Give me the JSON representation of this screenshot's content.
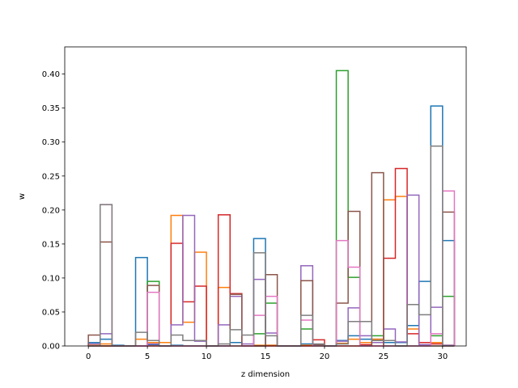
{
  "chart_data": {
    "type": "line",
    "style": "step-histogram",
    "xlabel": "z dimension",
    "ylabel": "w",
    "xlim": [
      -2,
      32
    ],
    "ylim": [
      0,
      0.44
    ],
    "xticks": [
      0,
      5,
      10,
      15,
      20,
      25,
      30
    ],
    "xtick_labels": [
      "0",
      "5",
      "10",
      "15",
      "20",
      "25",
      "30"
    ],
    "yticks": [
      0.0,
      0.05,
      0.1,
      0.15,
      0.2,
      0.25,
      0.3,
      0.35,
      0.4
    ],
    "ytick_labels": [
      "0.00",
      "0.05",
      "0.10",
      "0.15",
      "0.20",
      "0.25",
      "0.30",
      "0.35",
      "0.40"
    ],
    "grid": false,
    "bins": [
      0,
      1,
      2,
      3,
      4,
      5,
      6,
      7,
      8,
      9,
      10,
      11,
      12,
      13,
      14,
      15,
      16,
      17,
      18,
      19,
      20,
      21,
      22,
      23,
      24,
      25,
      26,
      27,
      28,
      29,
      30
    ],
    "series": [
      {
        "color": "#1f77b4",
        "values": [
          0.005,
          0.01,
          0.001,
          0,
          0.13,
          0.002,
          0,
          0.001,
          0,
          0,
          0,
          0,
          0.005,
          0,
          0.158,
          0.001,
          0,
          0,
          0.003,
          0,
          0,
          0.008,
          0.015,
          0.01,
          0.01,
          0.005,
          0.005,
          0.03,
          0.095,
          0.353,
          0.155
        ]
      },
      {
        "color": "#ff7f0e",
        "values": [
          0.001,
          0.003,
          0,
          0,
          0.01,
          0.005,
          0.005,
          0.192,
          0.035,
          0.138,
          0,
          0.086,
          0,
          0,
          0.001,
          0.001,
          0,
          0,
          0.001,
          0,
          0,
          0.004,
          0.01,
          0.005,
          0.01,
          0.215,
          0.22,
          0.025,
          0.005,
          0.005,
          0.001
        ]
      },
      {
        "color": "#2ca02c",
        "values": [
          0,
          0,
          0,
          0,
          0,
          0.095,
          0,
          0,
          0,
          0,
          0,
          0,
          0,
          0,
          0.018,
          0.063,
          0,
          0,
          0.025,
          0,
          0,
          0.405,
          0.101,
          0,
          0.015,
          0,
          0,
          0,
          0,
          0.015,
          0.073
        ]
      },
      {
        "color": "#d62728",
        "values": [
          0,
          0,
          0,
          0,
          0,
          0,
          0,
          0.151,
          0.065,
          0.088,
          0,
          0.193,
          0.077,
          0,
          0,
          0,
          0,
          0,
          0,
          0.009,
          0,
          0,
          0,
          0.002,
          0,
          0.129,
          0.261,
          0.018,
          0.005,
          0.003,
          0
        ]
      },
      {
        "color": "#9467bd",
        "values": [
          0.003,
          0.018,
          0,
          0,
          0,
          0.003,
          0,
          0.031,
          0.192,
          0.007,
          0,
          0.031,
          0.073,
          0.003,
          0.098,
          0.019,
          0,
          0,
          0.118,
          0.002,
          0,
          0.007,
          0.056,
          0.015,
          0.005,
          0.025,
          0.006,
          0.222,
          0.002,
          0.057,
          0.001
        ]
      },
      {
        "color": "#8c564b",
        "values": [
          0.016,
          0.153,
          0,
          0,
          0,
          0.089,
          0,
          0,
          0,
          0,
          0,
          0,
          0.076,
          0,
          0,
          0.105,
          0,
          0,
          0.096,
          0.002,
          0,
          0.063,
          0.198,
          0,
          0.255,
          0,
          0,
          0,
          0,
          0,
          0.197
        ]
      },
      {
        "color": "#e377c2",
        "values": [
          0,
          0.208,
          0,
          0,
          0,
          0.079,
          0,
          0,
          0,
          0,
          0,
          0,
          0,
          0,
          0.045,
          0.073,
          0,
          0,
          0.038,
          0,
          0,
          0.155,
          0.116,
          0,
          0,
          0,
          0,
          0,
          0,
          0.018,
          0.228
        ]
      },
      {
        "color": "#7f7f7f",
        "values": [
          0,
          0.208,
          0,
          0,
          0.02,
          0.008,
          0,
          0.016,
          0.008,
          0.008,
          0,
          0.003,
          0.024,
          0.016,
          0.137,
          0.015,
          0,
          0,
          0.045,
          0.003,
          0,
          0.003,
          0.036,
          0.036,
          0.008,
          0.008,
          0,
          0.061,
          0.046,
          0.294,
          0
        ]
      }
    ]
  }
}
